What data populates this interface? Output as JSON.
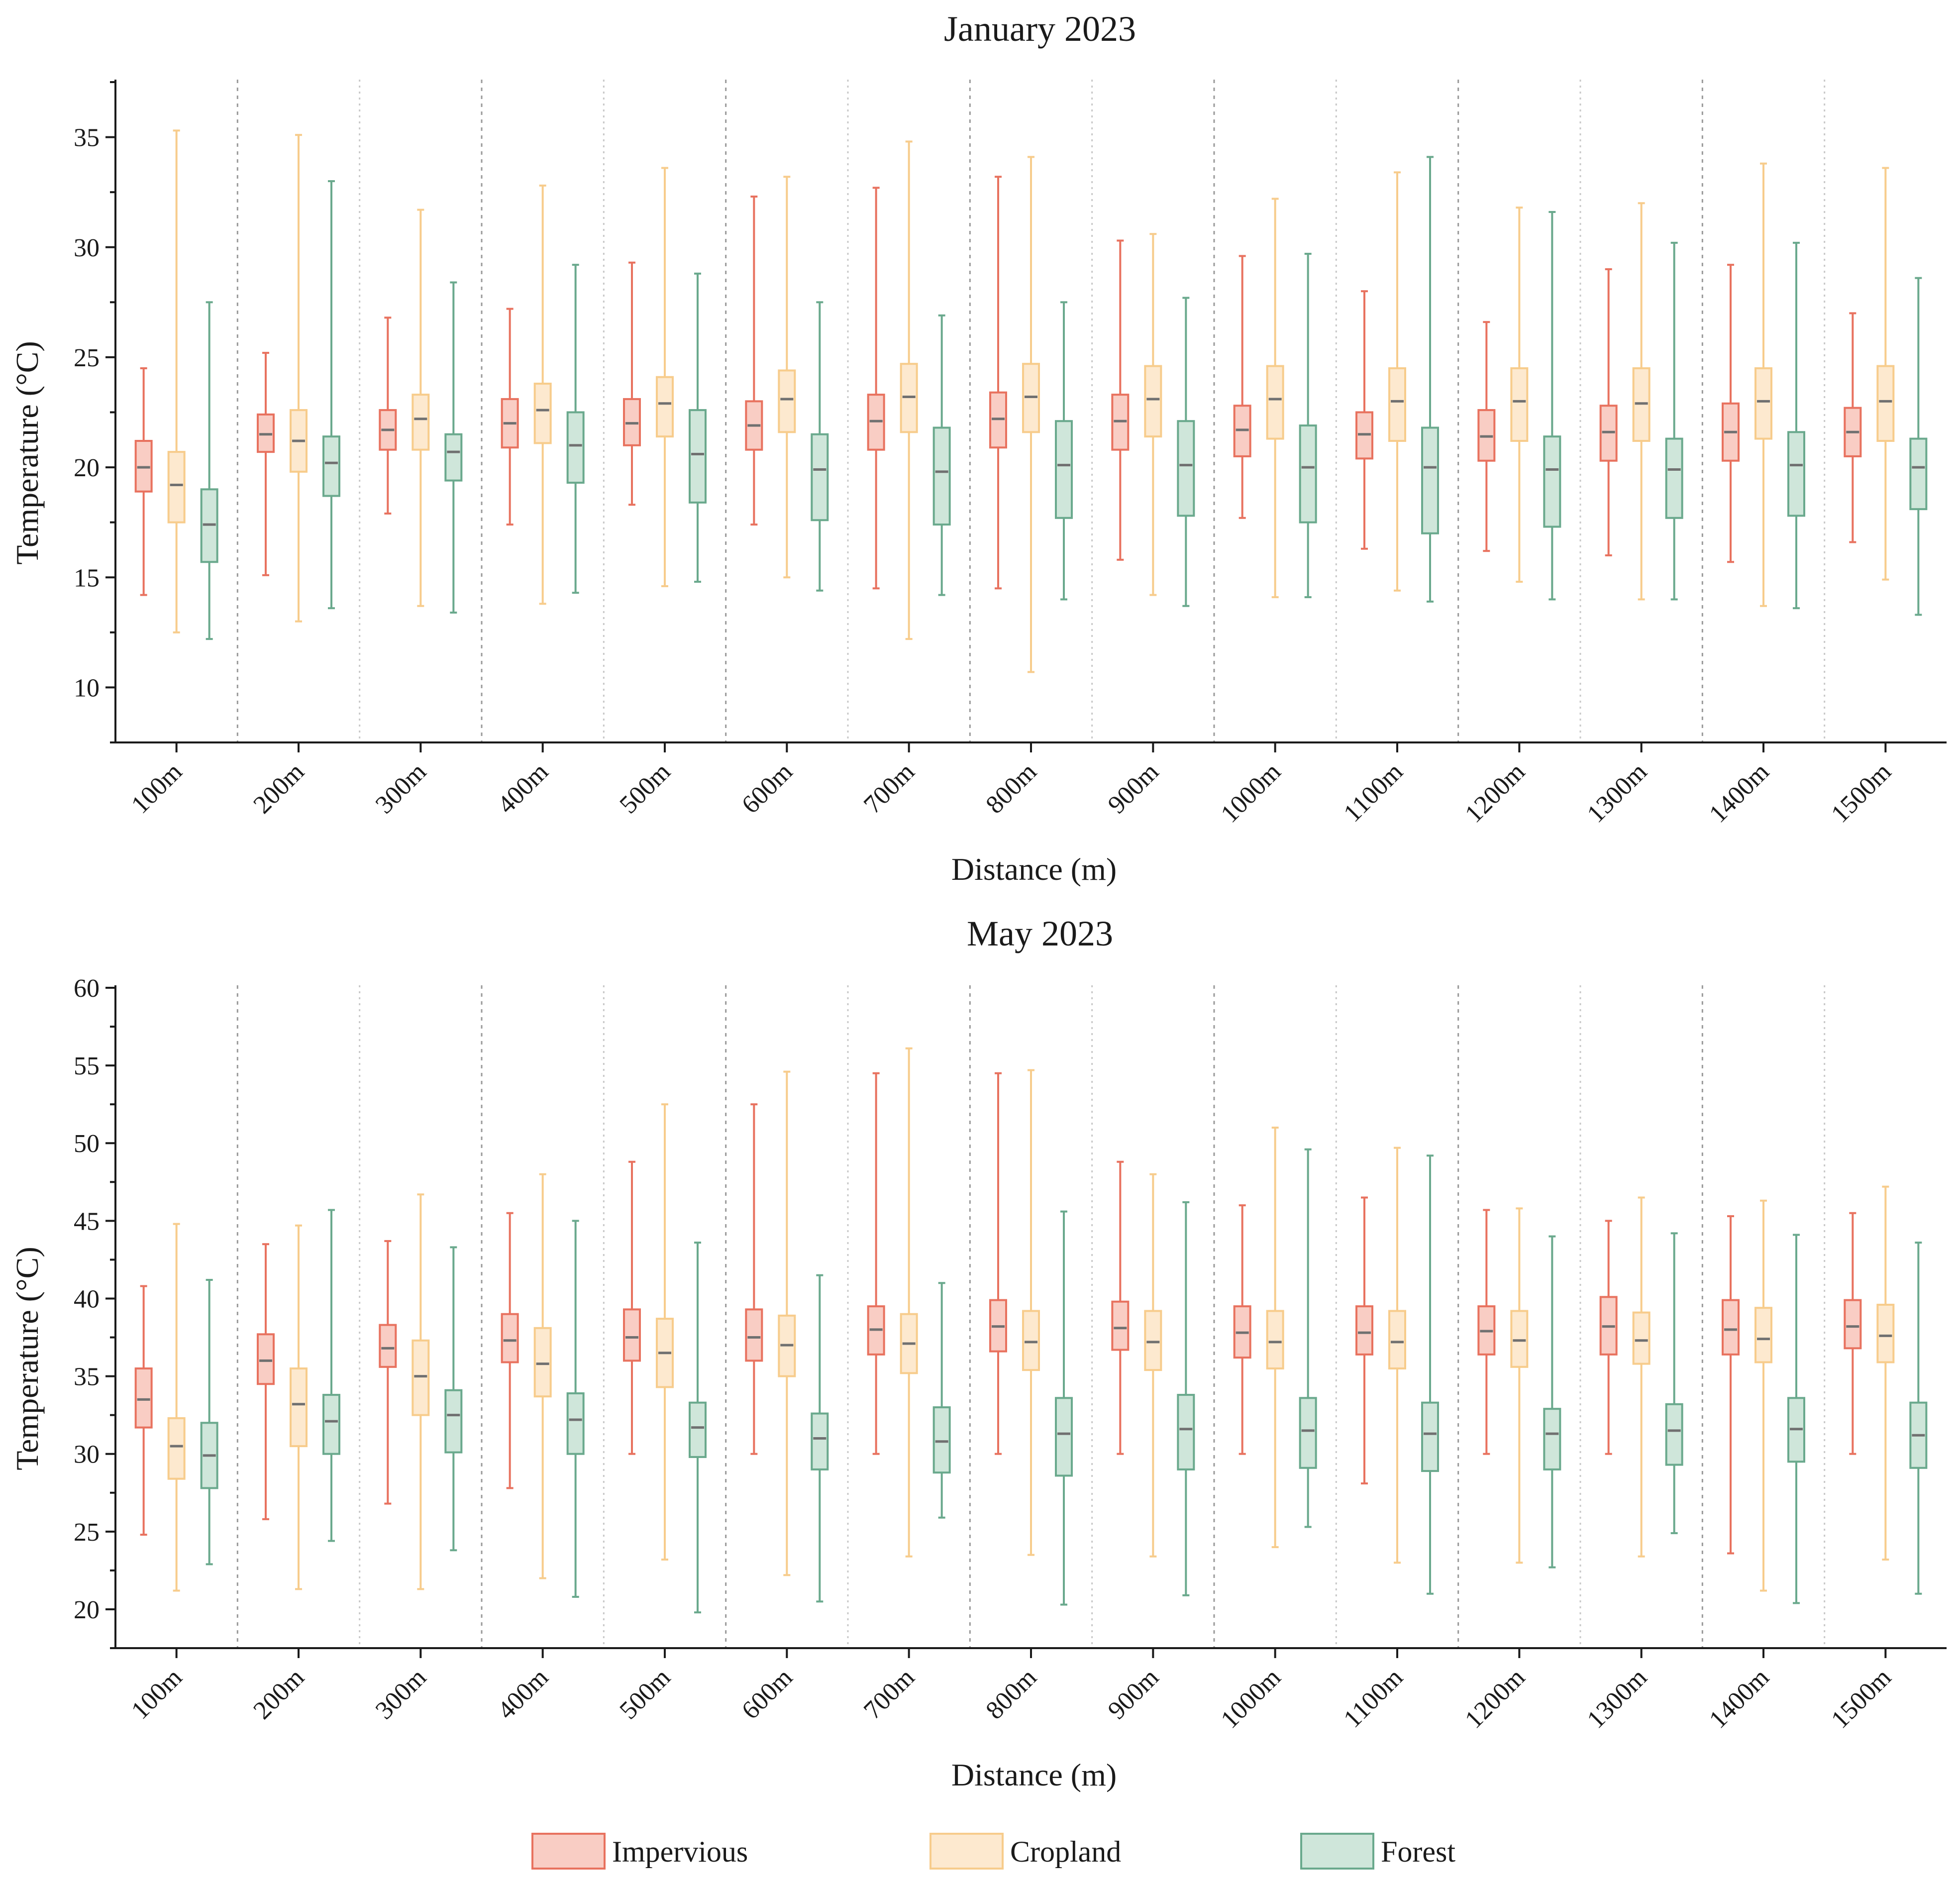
{
  "colors": {
    "impervious": {
      "stroke": "#e8725f",
      "fill": "#f9cdc4"
    },
    "cropland": {
      "stroke": "#f7cc8c",
      "fill": "#fde9cf"
    },
    "forest": {
      "stroke": "#6aa98d",
      "fill": "#cfe6da"
    },
    "median": "#707070"
  },
  "legend": {
    "impervious": "Impervious",
    "cropland": "Cropland",
    "forest": "Forest"
  },
  "chart_data": [
    {
      "type": "box",
      "title": "January  2023",
      "xlabel": "Distance (m)",
      "ylabel": "Temperature (°C)",
      "ylim": [
        7.5,
        37.5
      ],
      "yticks": [
        10,
        15,
        20,
        25,
        30,
        35
      ],
      "categories": [
        "100m",
        "200m",
        "300m",
        "400m",
        "500m",
        "600m",
        "700m",
        "800m",
        "900m",
        "1000m",
        "1100m",
        "1200m",
        "1300m",
        "1400m",
        "1500m"
      ],
      "series": [
        {
          "name": "Impervious",
          "key": "impervious",
          "stats": [
            [
              14.2,
              18.9,
              20.0,
              21.2,
              24.5
            ],
            [
              15.1,
              20.7,
              21.5,
              22.4,
              25.2
            ],
            [
              17.9,
              20.8,
              21.7,
              22.6,
              26.8
            ],
            [
              17.4,
              20.9,
              22.0,
              23.1,
              27.2
            ],
            [
              18.3,
              21.0,
              22.0,
              23.1,
              29.3
            ],
            [
              17.4,
              20.8,
              21.9,
              23.0,
              32.3
            ],
            [
              14.5,
              20.8,
              22.1,
              23.3,
              32.7
            ],
            [
              14.5,
              20.9,
              22.2,
              23.4,
              33.2
            ],
            [
              15.8,
              20.8,
              22.1,
              23.3,
              30.3
            ],
            [
              17.7,
              20.5,
              21.7,
              22.8,
              29.6
            ],
            [
              16.3,
              20.4,
              21.5,
              22.5,
              28.0
            ],
            [
              16.2,
              20.3,
              21.4,
              22.6,
              26.6
            ],
            [
              16.0,
              20.3,
              21.6,
              22.8,
              29.0
            ],
            [
              15.7,
              20.3,
              21.6,
              22.9,
              29.2
            ],
            [
              16.6,
              20.5,
              21.6,
              22.7,
              27.0
            ]
          ]
        },
        {
          "name": "Cropland",
          "key": "cropland",
          "stats": [
            [
              12.5,
              17.5,
              19.2,
              20.7,
              35.3
            ],
            [
              13.0,
              19.8,
              21.2,
              22.6,
              35.1
            ],
            [
              13.7,
              20.8,
              22.2,
              23.3,
              31.7
            ],
            [
              13.8,
              21.1,
              22.6,
              23.8,
              32.8
            ],
            [
              14.6,
              21.4,
              22.9,
              24.1,
              33.6
            ],
            [
              15.0,
              21.6,
              23.1,
              24.4,
              33.2
            ],
            [
              12.2,
              21.6,
              23.2,
              24.7,
              34.8
            ],
            [
              10.7,
              21.6,
              23.2,
              24.7,
              34.1
            ],
            [
              14.2,
              21.4,
              23.1,
              24.6,
              30.6
            ],
            [
              14.1,
              21.3,
              23.1,
              24.6,
              32.2
            ],
            [
              14.4,
              21.2,
              23.0,
              24.5,
              33.4
            ],
            [
              14.8,
              21.2,
              23.0,
              24.5,
              31.8
            ],
            [
              14.0,
              21.2,
              22.9,
              24.5,
              32.0
            ],
            [
              13.7,
              21.3,
              23.0,
              24.5,
              33.8
            ],
            [
              14.9,
              21.2,
              23.0,
              24.6,
              33.6
            ]
          ]
        },
        {
          "name": "Forest",
          "key": "forest",
          "stats": [
            [
              12.2,
              15.7,
              17.4,
              19.0,
              27.5
            ],
            [
              13.6,
              18.7,
              20.2,
              21.4,
              33.0
            ],
            [
              13.4,
              19.4,
              20.7,
              21.5,
              28.4
            ],
            [
              14.3,
              19.3,
              21.0,
              22.5,
              29.2
            ],
            [
              14.8,
              18.4,
              20.6,
              22.6,
              28.8
            ],
            [
              14.4,
              17.6,
              19.9,
              21.5,
              27.5
            ],
            [
              14.2,
              17.4,
              19.8,
              21.8,
              26.9
            ],
            [
              14.0,
              17.7,
              20.1,
              22.1,
              27.5
            ],
            [
              13.7,
              17.8,
              20.1,
              22.1,
              27.7
            ],
            [
              14.1,
              17.5,
              20.0,
              21.9,
              29.7
            ],
            [
              13.9,
              17.0,
              20.0,
              21.8,
              34.1
            ],
            [
              14.0,
              17.3,
              19.9,
              21.4,
              31.6
            ],
            [
              14.0,
              17.7,
              19.9,
              21.3,
              30.2
            ],
            [
              13.6,
              17.8,
              20.1,
              21.6,
              30.2
            ],
            [
              13.3,
              18.1,
              20.0,
              21.3,
              28.6
            ]
          ]
        }
      ]
    },
    {
      "type": "box",
      "title": "May  2023",
      "xlabel": "Distance (m)",
      "ylabel": "Temperature (°C)",
      "ylim": [
        17.5,
        60
      ],
      "yticks": [
        20,
        25,
        30,
        35,
        40,
        45,
        50,
        55,
        60
      ],
      "categories": [
        "100m",
        "200m",
        "300m",
        "400m",
        "500m",
        "600m",
        "700m",
        "800m",
        "900m",
        "1000m",
        "1100m",
        "1200m",
        "1300m",
        "1400m",
        "1500m"
      ],
      "series": [
        {
          "name": "Impervious",
          "key": "impervious",
          "stats": [
            [
              24.8,
              31.7,
              33.5,
              35.5,
              40.8
            ],
            [
              25.8,
              34.5,
              36.0,
              37.7,
              43.5
            ],
            [
              26.8,
              35.6,
              36.8,
              38.3,
              43.7
            ],
            [
              27.8,
              35.9,
              37.3,
              39.0,
              45.5
            ],
            [
              30.0,
              36.0,
              37.5,
              39.3,
              48.8
            ],
            [
              30.0,
              36.0,
              37.5,
              39.3,
              52.5
            ],
            [
              30.0,
              36.4,
              38.0,
              39.5,
              54.5
            ],
            [
              30.0,
              36.6,
              38.2,
              39.9,
              54.5
            ],
            [
              30.0,
              36.7,
              38.1,
              39.8,
              48.8
            ],
            [
              30.0,
              36.2,
              37.8,
              39.5,
              46.0
            ],
            [
              28.1,
              36.4,
              37.8,
              39.5,
              46.5
            ],
            [
              30.0,
              36.4,
              37.9,
              39.5,
              45.7
            ],
            [
              30.0,
              36.4,
              38.2,
              40.1,
              45.0
            ],
            [
              23.6,
              36.4,
              38.0,
              39.9,
              45.3
            ],
            [
              30.0,
              36.8,
              38.2,
              39.9,
              45.5
            ]
          ]
        },
        {
          "name": "Cropland",
          "key": "cropland",
          "stats": [
            [
              21.2,
              28.4,
              30.5,
              32.3,
              44.8
            ],
            [
              21.3,
              30.5,
              33.2,
              35.5,
              44.7
            ],
            [
              21.3,
              32.5,
              35.0,
              37.3,
              46.7
            ],
            [
              22.0,
              33.7,
              35.8,
              38.1,
              48.0
            ],
            [
              23.2,
              34.3,
              36.5,
              38.7,
              52.5
            ],
            [
              22.2,
              35.0,
              37.0,
              38.9,
              54.6
            ],
            [
              23.4,
              35.2,
              37.1,
              39.0,
              56.1
            ],
            [
              23.5,
              35.4,
              37.2,
              39.2,
              54.7
            ],
            [
              23.4,
              35.4,
              37.2,
              39.2,
              48.0
            ],
            [
              24.0,
              35.5,
              37.2,
              39.2,
              51.0
            ],
            [
              23.0,
              35.5,
              37.2,
              39.2,
              49.7
            ],
            [
              23.0,
              35.6,
              37.3,
              39.2,
              45.8
            ],
            [
              23.4,
              35.8,
              37.3,
              39.1,
              46.5
            ],
            [
              21.2,
              35.9,
              37.4,
              39.4,
              46.3
            ],
            [
              23.2,
              35.9,
              37.6,
              39.6,
              47.2
            ]
          ]
        },
        {
          "name": "Forest",
          "key": "forest",
          "stats": [
            [
              22.9,
              27.8,
              29.9,
              32.0,
              41.2
            ],
            [
              24.4,
              30.0,
              32.1,
              33.8,
              45.7
            ],
            [
              23.8,
              30.1,
              32.5,
              34.1,
              43.3
            ],
            [
              20.8,
              30.0,
              32.2,
              33.9,
              45.0
            ],
            [
              19.8,
              29.8,
              31.7,
              33.3,
              43.6
            ],
            [
              20.5,
              29.0,
              31.0,
              32.6,
              41.5
            ],
            [
              25.9,
              28.8,
              30.8,
              33.0,
              41.0
            ],
            [
              20.3,
              28.6,
              31.3,
              33.6,
              45.6
            ],
            [
              20.9,
              29.0,
              31.6,
              33.8,
              46.2
            ],
            [
              25.3,
              29.1,
              31.5,
              33.6,
              49.6
            ],
            [
              21.0,
              28.9,
              31.3,
              33.3,
              49.2
            ],
            [
              22.7,
              29.0,
              31.3,
              32.9,
              44.0
            ],
            [
              24.9,
              29.3,
              31.5,
              33.2,
              44.2
            ],
            [
              20.4,
              29.5,
              31.6,
              33.6,
              44.1
            ],
            [
              21.0,
              29.1,
              31.2,
              33.3,
              43.6
            ]
          ]
        }
      ]
    }
  ]
}
